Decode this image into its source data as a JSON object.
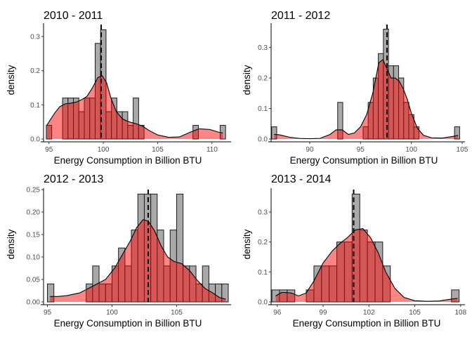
{
  "chart_data": [
    {
      "type": "histogram",
      "title": "2010 - 2011",
      "xlabel": "Energy Consumption in Billion BTU",
      "ylabel": "density",
      "xlim": [
        94.5,
        111.5
      ],
      "ylim": [
        0,
        0.335
      ],
      "xticks": [
        95,
        100,
        105,
        110
      ],
      "yticks": [
        0.0,
        0.1,
        0.2,
        0.3
      ],
      "ytick_labels": [
        "0.0",
        "0.1",
        "0.2",
        "0.3"
      ],
      "bin_width": 0.5,
      "x": [
        95.0,
        96.5,
        97.0,
        97.5,
        98.0,
        98.5,
        99.0,
        99.5,
        100.0,
        100.5,
        101.0,
        101.5,
        102.0,
        102.5,
        103.0,
        103.5,
        108.5,
        111.0
      ],
      "y": [
        0.04,
        0.12,
        0.12,
        0.12,
        0.08,
        0.12,
        0.12,
        0.28,
        0.32,
        0.08,
        0.12,
        0.08,
        0.08,
        0.04,
        0.12,
        0.04,
        0.04,
        0.04
      ],
      "density_x": [
        94.8,
        95.5,
        96.0,
        96.5,
        97.0,
        97.5,
        98.0,
        98.5,
        99.0,
        99.5,
        99.9,
        100.3,
        100.7,
        101.2,
        101.8,
        102.4,
        103.0,
        103.6,
        104.2,
        105.0,
        106.0,
        107.0,
        108.0,
        108.8,
        109.8,
        110.6,
        111.0
      ],
      "density_y": [
        0.04,
        0.075,
        0.095,
        0.103,
        0.105,
        0.108,
        0.115,
        0.125,
        0.15,
        0.18,
        0.185,
        0.165,
        0.12,
        0.08,
        0.058,
        0.05,
        0.045,
        0.038,
        0.025,
        0.012,
        0.005,
        0.006,
        0.02,
        0.03,
        0.028,
        0.02,
        0.018
      ],
      "mean": 99.8
    },
    {
      "type": "histogram",
      "title": "2011 - 2012",
      "xlabel": "Energy Consumption in Billion BTU",
      "ylabel": "density",
      "xlim": [
        86.2,
        105.0
      ],
      "ylim": [
        0,
        0.375
      ],
      "xticks": [
        90,
        95,
        100,
        105
      ],
      "yticks": [
        0.0,
        0.1,
        0.2,
        0.3
      ],
      "ytick_labels": [
        "0.0",
        "0.1",
        "0.2",
        "0.3"
      ],
      "bin_width": 0.5,
      "x": [
        86.5,
        93.0,
        95.5,
        96.0,
        96.5,
        97.0,
        97.5,
        98.0,
        98.5,
        99.0,
        99.5,
        100.0,
        100.5,
        104.5
      ],
      "y": [
        0.04,
        0.12,
        0.04,
        0.12,
        0.2,
        0.28,
        0.36,
        0.24,
        0.24,
        0.2,
        0.12,
        0.08,
        0.04,
        0.04
      ],
      "density_x": [
        86.5,
        87.0,
        88.0,
        89.0,
        90.0,
        91.0,
        92.0,
        92.6,
        93.2,
        93.8,
        94.4,
        95.0,
        95.6,
        96.2,
        96.8,
        97.2,
        97.6,
        98.0,
        98.4,
        98.8,
        99.2,
        99.6,
        100.0,
        100.6,
        101.2,
        102.0,
        103.0,
        104.0,
        104.6
      ],
      "density_y": [
        0.015,
        0.014,
        0.006,
        0.002,
        0.001,
        0.002,
        0.015,
        0.03,
        0.03,
        0.015,
        0.02,
        0.04,
        0.08,
        0.15,
        0.25,
        0.26,
        0.23,
        0.2,
        0.2,
        0.19,
        0.165,
        0.13,
        0.085,
        0.035,
        0.012,
        0.004,
        0.003,
        0.008,
        0.012
      ],
      "mean": 97.6
    },
    {
      "type": "histogram",
      "title": "2012 - 2013",
      "xlabel": "Energy Consumption in Billion BTU",
      "ylabel": "density",
      "xlim": [
        94.7,
        109.0
      ],
      "ylim": [
        0,
        0.25
      ],
      "xticks": [
        95,
        100,
        105
      ],
      "yticks": [
        0.0,
        0.05,
        0.1,
        0.15,
        0.2,
        0.25
      ],
      "ytick_labels": [
        "0.00",
        "0.05",
        "0.10",
        "0.15",
        "0.20",
        "0.25"
      ],
      "bin_width": 0.5,
      "x": [
        95.25,
        98.25,
        98.75,
        99.25,
        99.75,
        100.25,
        100.75,
        101.25,
        101.75,
        102.25,
        102.75,
        103.25,
        103.75,
        104.25,
        104.75,
        105.25,
        105.75,
        106.25,
        106.75,
        107.25,
        107.75,
        108.25,
        108.75
      ],
      "y": [
        0.04,
        0.04,
        0.08,
        0.04,
        0.04,
        0.08,
        0.12,
        0.08,
        0.16,
        0.24,
        0.24,
        0.24,
        0.16,
        0.08,
        0.16,
        0.24,
        0.08,
        0.08,
        0.04,
        0.08,
        0.04,
        0.04,
        0.04
      ],
      "density_x": [
        95.2,
        95.8,
        96.5,
        97.5,
        98.5,
        99.5,
        100.2,
        100.8,
        101.4,
        101.9,
        102.4,
        102.8,
        103.3,
        103.8,
        104.3,
        104.8,
        105.4,
        106.0,
        106.6,
        107.2,
        107.8,
        108.3,
        108.8
      ],
      "density_y": [
        0.012,
        0.012,
        0.014,
        0.02,
        0.035,
        0.05,
        0.075,
        0.105,
        0.135,
        0.165,
        0.183,
        0.18,
        0.158,
        0.125,
        0.1,
        0.09,
        0.085,
        0.07,
        0.048,
        0.03,
        0.02,
        0.01,
        0.006
      ],
      "mean": 102.8
    },
    {
      "type": "histogram",
      "title": "2013 - 2014",
      "xlabel": "Energy Consumption in Billion BTU",
      "ylabel": "density",
      "xlim": [
        95.6,
        108.1
      ],
      "ylim": [
        0,
        0.375
      ],
      "xticks": [
        96,
        99,
        102,
        105,
        108
      ],
      "yticks": [
        0.0,
        0.1,
        0.2,
        0.3
      ],
      "ytick_labels": [
        "0.0",
        "0.1",
        "0.2",
        "0.3"
      ],
      "bin_width": 0.5,
      "x": [
        95.9,
        96.4,
        96.9,
        98.15,
        98.65,
        99.15,
        99.65,
        100.15,
        100.65,
        101.15,
        101.65,
        102.15,
        102.65,
        103.15,
        107.65
      ],
      "y": [
        0.04,
        0.04,
        0.04,
        0.04,
        0.12,
        0.12,
        0.12,
        0.2,
        0.2,
        0.36,
        0.24,
        0.2,
        0.2,
        0.12,
        0.04
      ],
      "density_x": [
        95.9,
        96.3,
        96.9,
        97.4,
        97.9,
        98.4,
        99.0,
        99.6,
        100.1,
        100.6,
        101.1,
        101.6,
        102.1,
        102.6,
        103.1,
        103.7,
        104.3,
        105.0,
        105.8,
        106.6,
        107.2,
        107.8
      ],
      "density_y": [
        0.02,
        0.032,
        0.03,
        0.02,
        0.03,
        0.07,
        0.13,
        0.17,
        0.195,
        0.215,
        0.24,
        0.245,
        0.215,
        0.165,
        0.1,
        0.045,
        0.015,
        0.004,
        0.002,
        0.003,
        0.008,
        0.012
      ],
      "mean": 101.0
    }
  ]
}
